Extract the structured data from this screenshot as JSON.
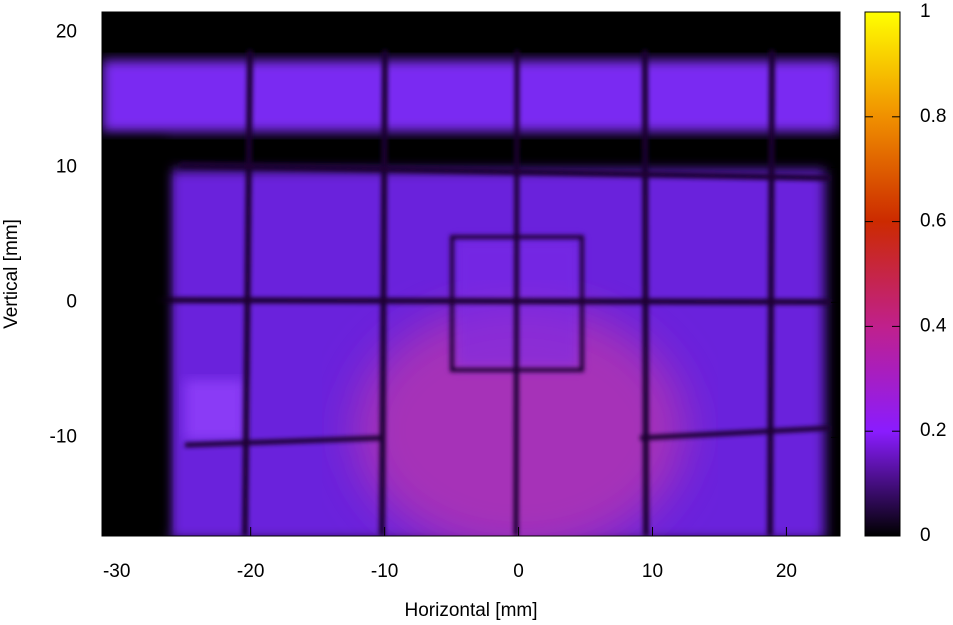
{
  "chart_data": {
    "type": "heatmap",
    "xlabel": "Horizontal [mm]",
    "ylabel": "Vertical [mm]",
    "xlim": [
      -31.1,
      24
    ],
    "xticks": [
      -30,
      -20,
      -10,
      0,
      10,
      20
    ],
    "ylim": [
      -17.3,
      21.5
    ],
    "yticks": [
      -10,
      0,
      10,
      20
    ],
    "colorbar": {
      "lim": [
        0,
        1
      ],
      "ticks": [
        0,
        0.2,
        0.4,
        0.6,
        0.8,
        1
      ],
      "colormap": [
        "#000000",
        "#8a1cff",
        "#c0208c",
        "#cc2a00",
        "#f09000",
        "#ffff00"
      ]
    }
  }
}
